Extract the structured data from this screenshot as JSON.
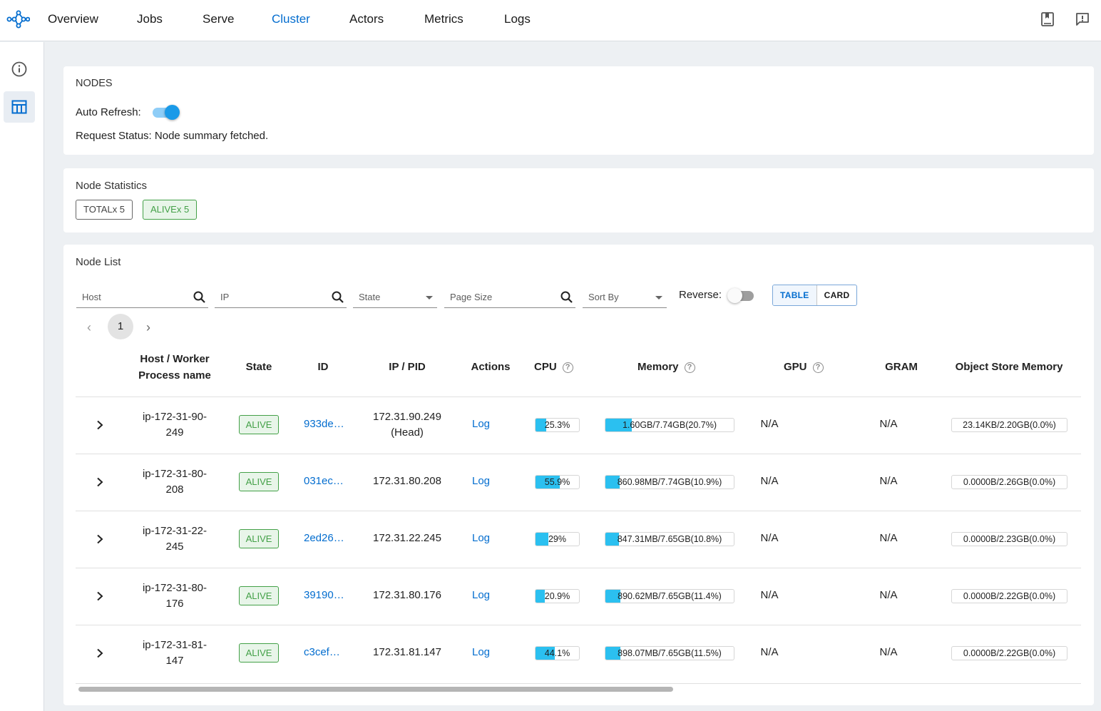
{
  "nav": {
    "tabs": [
      "Overview",
      "Jobs",
      "Serve",
      "Cluster",
      "Actors",
      "Metrics",
      "Logs"
    ],
    "active": "Cluster"
  },
  "icons": {
    "logo": "ray-logo-icon",
    "docs": "book-icon",
    "feedback": "feedback-icon",
    "info": "info-icon",
    "table": "table-icon"
  },
  "colors": {
    "accent": "#036dcf",
    "alive": "#43a047",
    "bar_fill": "#2bc0f0"
  },
  "nodes_card": {
    "title": "NODES",
    "auto_refresh_label": "Auto Refresh:",
    "auto_refresh_on": true,
    "request_status": "Request Status: Node summary fetched."
  },
  "stats_card": {
    "title": "Node Statistics",
    "total_chip": "TOTALx 5",
    "alive_chip": "ALIVEx 5"
  },
  "list_card": {
    "title": "Node List",
    "filters": {
      "host_placeholder": "Host",
      "ip_placeholder": "IP",
      "state_placeholder": "State",
      "page_size_placeholder": "Page Size",
      "sort_by_placeholder": "Sort By"
    },
    "reverse_label": "Reverse:",
    "reverse_on": false,
    "view_toggle": {
      "table": "TABLE",
      "card": "CARD",
      "selected": "TABLE"
    },
    "pagination": {
      "prev": "‹",
      "current": "1",
      "next": "›"
    },
    "columns": {
      "host_line1": "Host / Worker",
      "host_line2": "Process name",
      "state": "State",
      "id": "ID",
      "ip_pid": "IP / PID",
      "actions": "Actions",
      "cpu": "CPU",
      "memory": "Memory",
      "gpu": "GPU",
      "gram": "GRAM",
      "object_store": "Object Store Memory"
    },
    "rows": [
      {
        "host_line1": "ip-172-31-90-",
        "host_line2": "249",
        "state": "ALIVE",
        "id": "933de…",
        "ip_line1": "172.31.90.249",
        "ip_line2": "(Head)",
        "action": "Log",
        "cpu_text": "25.3%",
        "cpu_pct": 25.3,
        "mem_text": "1.60GB/7.74GB(20.7%)",
        "mem_pct": 20.7,
        "gpu": "N/A",
        "gram": "N/A",
        "obj_text": "23.14KB/2.20GB(0.0%)",
        "obj_pct": 0.0
      },
      {
        "host_line1": "ip-172-31-80-",
        "host_line2": "208",
        "state": "ALIVE",
        "id": "031ec…",
        "ip_line1": "172.31.80.208",
        "ip_line2": "",
        "action": "Log",
        "cpu_text": "55.9%",
        "cpu_pct": 55.9,
        "mem_text": "860.98MB/7.74GB(10.9%)",
        "mem_pct": 10.9,
        "gpu": "N/A",
        "gram": "N/A",
        "obj_text": "0.0000B/2.26GB(0.0%)",
        "obj_pct": 0.0
      },
      {
        "host_line1": "ip-172-31-22-",
        "host_line2": "245",
        "state": "ALIVE",
        "id": "2ed26…",
        "ip_line1": "172.31.22.245",
        "ip_line2": "",
        "action": "Log",
        "cpu_text": "29%",
        "cpu_pct": 29,
        "mem_text": "847.31MB/7.65GB(10.8%)",
        "mem_pct": 10.8,
        "gpu": "N/A",
        "gram": "N/A",
        "obj_text": "0.0000B/2.23GB(0.0%)",
        "obj_pct": 0.0
      },
      {
        "host_line1": "ip-172-31-80-",
        "host_line2": "176",
        "state": "ALIVE",
        "id": "39190…",
        "ip_line1": "172.31.80.176",
        "ip_line2": "",
        "action": "Log",
        "cpu_text": "20.9%",
        "cpu_pct": 20.9,
        "mem_text": "890.62MB/7.65GB(11.4%)",
        "mem_pct": 11.4,
        "gpu": "N/A",
        "gram": "N/A",
        "obj_text": "0.0000B/2.22GB(0.0%)",
        "obj_pct": 0.0
      },
      {
        "host_line1": "ip-172-31-81-",
        "host_line2": "147",
        "state": "ALIVE",
        "id": "c3cef…",
        "ip_line1": "172.31.81.147",
        "ip_line2": "",
        "action": "Log",
        "cpu_text": "44.1%",
        "cpu_pct": 44.1,
        "mem_text": "898.07MB/7.65GB(11.5%)",
        "mem_pct": 11.5,
        "gpu": "N/A",
        "gram": "N/A",
        "obj_text": "0.0000B/2.22GB(0.0%)",
        "obj_pct": 0.0
      }
    ]
  }
}
